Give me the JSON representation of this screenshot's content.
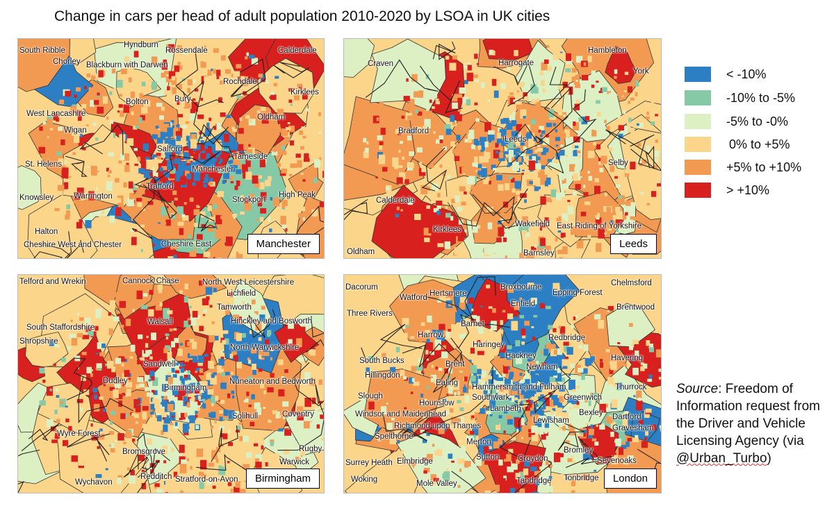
{
  "title": "Change in cars per head of adult population 2010-2020 by LSOA in UK cities",
  "legend": [
    {
      "label": "< -10%",
      "color": "#2d7fc4"
    },
    {
      "label": "-10% to -5%",
      "color": "#86c9a6"
    },
    {
      "label": "-5% to -0%",
      "color": "#dcf0c4"
    },
    {
      "label": "0% to +5%",
      "color": "#fbd58a"
    },
    {
      "label": "+5% to +10%",
      "color": "#f39a52"
    },
    {
      "label": "> +10%",
      "color": "#d8211f"
    }
  ],
  "maps": [
    {
      "city": "Manchester",
      "mix": [
        0.04,
        0.07,
        0.09,
        0.25,
        0.29,
        0.26
      ],
      "places": [
        "South Ribble",
        "Hyndburn",
        "Rossendale",
        "Calderdale",
        "Chorley",
        "Blackburn with Darwen",
        "Rochdale",
        "Kirklees",
        "Bolton",
        "Bury",
        "West Lancashire",
        "Oldham",
        "Wigan",
        "Salford",
        "Tameside",
        "St. Helens",
        "Manchester",
        "Trafford",
        "Knowsley",
        "Warrington",
        "Stockport",
        "High Peak",
        "Halton",
        "Cheshire West and Chester",
        "Cheshire East"
      ]
    },
    {
      "city": "Leeds",
      "mix": [
        0.03,
        0.05,
        0.22,
        0.3,
        0.26,
        0.14
      ],
      "places": [
        "Hambleton",
        "Craven",
        "Harrogate",
        "York",
        "Bradford",
        "Leeds",
        "Selby",
        "Calderdale",
        "Kirklees",
        "Wakefield",
        "East Riding of Yorkshire",
        "Oldham",
        "Barnsley"
      ]
    },
    {
      "city": "Birmingham",
      "mix": [
        0.06,
        0.06,
        0.16,
        0.26,
        0.22,
        0.24
      ],
      "places": [
        "Telford and Wrekin",
        "Cannock Chase",
        "North West Leicestershire",
        "Lichfield",
        "Tamworth",
        "South Staffordshire",
        "Walsall",
        "Hinckley and Bosworth",
        "Shropshire",
        "North Warwickshire",
        "Sandwell",
        "Dudley",
        "Birmingham",
        "Nuneaton and Bedworth",
        "Solihull",
        "Coventry",
        "Wyre Forest",
        "Rugby",
        "Bromsgrove",
        "Warwick",
        "Wychavon",
        "Redditch",
        "Stratford-on-Avon"
      ]
    },
    {
      "city": "London",
      "mix": [
        0.17,
        0.1,
        0.2,
        0.2,
        0.18,
        0.15
      ],
      "places": [
        "Dacorum",
        "Hertsmere",
        "Broxbourne",
        "Chelmsford",
        "Watford",
        "Epping Forest",
        "Enfield",
        "Brentwood",
        "Three Rivers",
        "Barnet",
        "Harrow",
        "Haringey",
        "Redbridge",
        "South Bucks",
        "Hackney",
        "Havering",
        "Brent",
        "Newham",
        "Hillingdon",
        "Ealing",
        "Hammersmith and Fulham",
        "Thurrock",
        "Slough",
        "Southwark",
        "Greenwich",
        "Hounslow",
        "Lambeth",
        "Bexley",
        "Windsor and Maidenhead",
        "Dartford",
        "Richmond upon Thames",
        "Lewisham",
        "Gravesham",
        "Spelthorne",
        "Merton",
        "Bromley",
        "Sutton",
        "Croydon",
        "Sevenoaks",
        "Surrey Heath",
        "Elmbridge",
        "Woking",
        "Mole Valley",
        "Tandridge",
        "Tonbridge"
      ]
    }
  ],
  "source": {
    "prefix": "Source",
    "text": ": Freedom of Information request from the Driver and Vehicle Licensing Agency (via ",
    "handle": "@Urban_Turbo",
    "suffix": ")"
  }
}
